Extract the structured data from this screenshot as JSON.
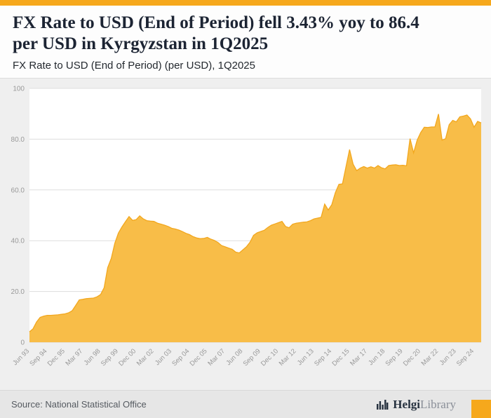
{
  "header": {
    "title_line1": "FX Rate to USD (End of Period) fell 3.43% yoy to 86.4",
    "title_line2": "per USD in Kyrgyzstan in 1Q2025",
    "subtitle": "FX Rate to USD (End of Period) (per USD), 1Q2025"
  },
  "footer": {
    "source": "Source: National Statistical Office",
    "logo_bold": "Helgi",
    "logo_light": "Library"
  },
  "colors": {
    "accent": "#f6a81c",
    "area_fill": "#f8bd48",
    "area_stroke": "#f2a71e",
    "grid": "#dddddd",
    "plot_bg": "#ffffff",
    "axis_text": "#999999"
  },
  "chart_data": {
    "type": "area",
    "title": "FX Rate to USD (End of Period) (per USD), 1Q2025",
    "xlabel": "",
    "ylabel": "",
    "ylim": [
      0,
      100
    ],
    "grid": true,
    "legend": "none",
    "yticks": [
      0,
      20,
      40,
      60,
      80,
      100
    ],
    "ytick_labels": [
      "0",
      "20.0",
      "40.0",
      "60.0",
      "80.0",
      "100"
    ],
    "x_tick_every": 5,
    "x_tick_labels": [
      "Jun 93",
      "Sep 94",
      "Dec 95",
      "Mar 97",
      "Jun 98",
      "Sep 99",
      "Dec 00",
      "Mar 02",
      "Jun 03",
      "Sep 04",
      "Dec 05",
      "Mar 07",
      "Jun 08",
      "Sep 09",
      "Dec 10",
      "Mar 12",
      "Jun 13",
      "Sep 14",
      "Dec 15",
      "Mar 17",
      "Jun 18",
      "Sep 19",
      "Dec 20",
      "Mar 22",
      "Jun 23",
      "Sep 24"
    ],
    "frequency": "quarterly",
    "series_name": "FX Rate to USD (End of Period), per USD",
    "values": [
      4.1,
      5.3,
      8.0,
      9.8,
      10.3,
      10.6,
      10.6,
      10.7,
      10.8,
      11.0,
      11.2,
      11.6,
      12.4,
      14.5,
      16.7,
      16.9,
      17.2,
      17.3,
      17.4,
      17.9,
      18.8,
      21.5,
      29.4,
      33.0,
      39.0,
      43.0,
      45.4,
      47.5,
      49.5,
      48.0,
      48.3,
      49.8,
      48.6,
      47.9,
      47.7,
      47.6,
      46.9,
      46.5,
      46.1,
      45.6,
      44.9,
      44.6,
      44.2,
      43.6,
      42.9,
      42.4,
      41.6,
      41.1,
      40.8,
      40.9,
      41.3,
      40.6,
      40.1,
      39.3,
      38.1,
      37.6,
      37.1,
      36.6,
      35.5,
      35.2,
      36.4,
      37.6,
      39.4,
      42.1,
      43.1,
      43.6,
      44.1,
      45.2,
      46.1,
      46.6,
      47.1,
      47.6,
      45.6,
      45.1,
      46.5,
      46.9,
      47.1,
      47.3,
      47.4,
      47.9,
      48.6,
      48.9,
      49.2,
      54.4,
      52.1,
      54.2,
      58.9,
      62.2,
      62.4,
      69.2,
      75.9,
      70.1,
      67.6,
      68.6,
      69.2,
      68.6,
      69.1,
      68.6,
      69.6,
      68.7,
      68.3,
      69.6,
      69.8,
      69.9,
      69.6,
      69.7,
      69.5,
      80.2,
      74.6,
      79.6,
      82.6,
      84.7,
      84.6,
      84.8,
      84.8,
      89.9,
      79.6,
      80.2,
      85.7,
      87.4,
      86.8,
      88.8,
      89.1,
      89.5,
      88.0,
      84.7,
      87.0,
      86.4
    ]
  }
}
